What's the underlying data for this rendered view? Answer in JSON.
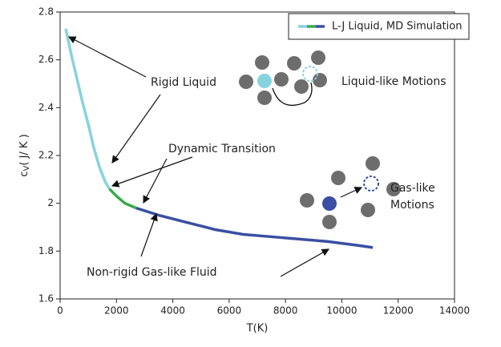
{
  "chart_data": {
    "type": "line",
    "xlabel": "T(K)",
    "ylabel": [
      "c",
      "V",
      "( J/ K )"
    ],
    "legend_label": "L-J Liquid, MD Simulation",
    "legend": "upper right",
    "xlim": [
      0,
      14000
    ],
    "xticks": [
      0,
      2000,
      4000,
      6000,
      8000,
      10000,
      12000,
      14000
    ],
    "ylim": [
      1.6,
      2.8
    ],
    "yticks": [
      1.6,
      1.8,
      2,
      2.2,
      2.4,
      2.6,
      2.8
    ],
    "series": [
      {
        "color": "#86d3df",
        "x": [
          200,
          400,
          600,
          800,
          1000,
          1200,
          1400,
          1600,
          1750
        ],
        "values": [
          2.73,
          2.62,
          2.52,
          2.42,
          2.33,
          2.23,
          2.15,
          2.09,
          2.06
        ]
      },
      {
        "color": "#3aaa4a",
        "x": [
          1750,
          2000,
          2300,
          2700
        ],
        "values": [
          2.06,
          2.03,
          2.0,
          1.98
        ]
      },
      {
        "color": "#3a4fa3",
        "x": [
          2700,
          3500,
          4500,
          5500,
          6500,
          7500,
          8500,
          9500,
          10500,
          11100
        ],
        "values": [
          1.98,
          1.95,
          1.92,
          1.89,
          1.87,
          1.86,
          1.85,
          1.84,
          1.825,
          1.815
        ]
      }
    ],
    "annotations": {
      "rigid": "Rigid Liquid",
      "transition": "Dynamic Transition",
      "gas_fluid": "Non-rigid Gas-like Fluid",
      "liquid_motions": "Liquid-like Motions",
      "gas_motions": [
        "Gas-like",
        "Motions"
      ]
    }
  }
}
